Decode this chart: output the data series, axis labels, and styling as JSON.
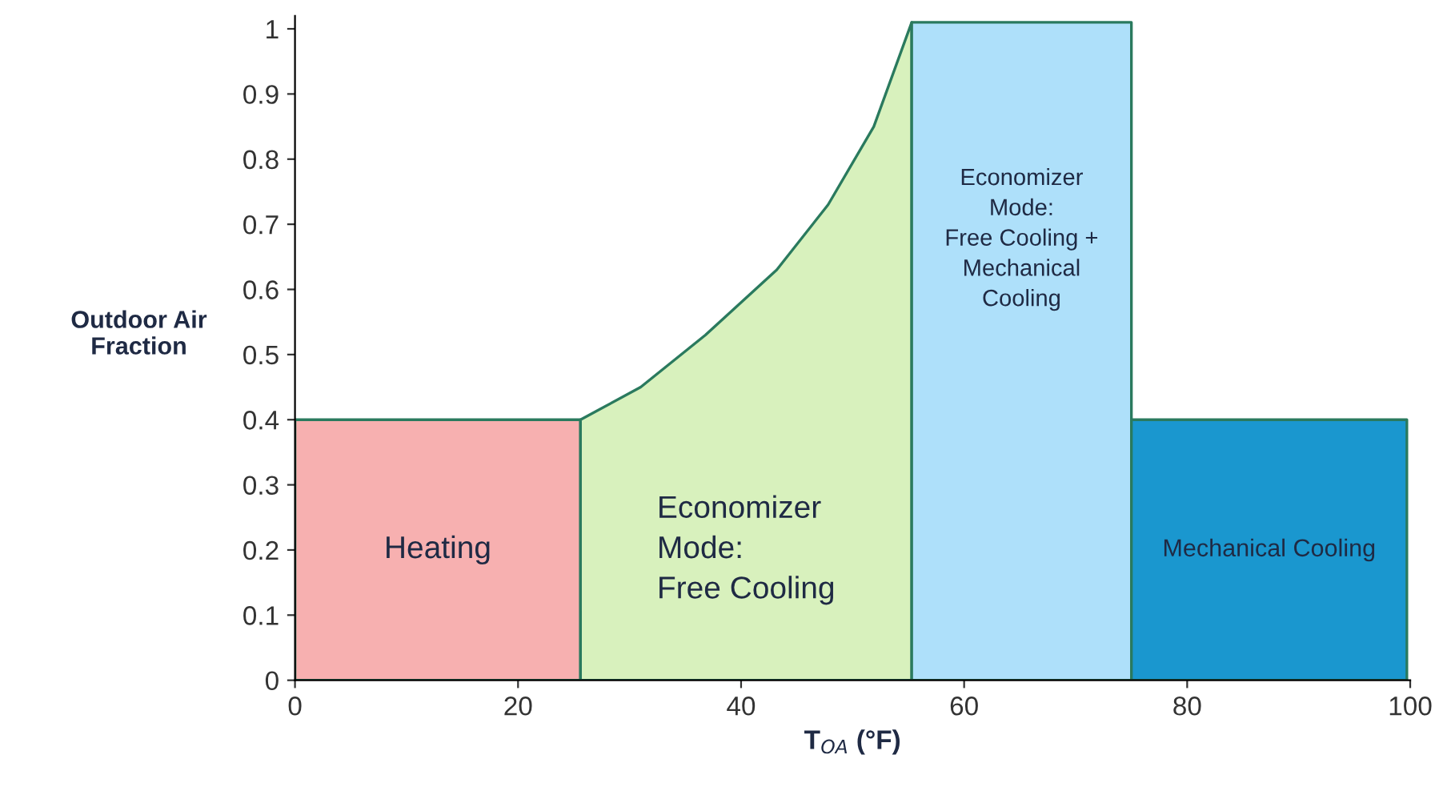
{
  "chart_data": {
    "type": "area",
    "xlabel": "T$_{OA}$ (°F)",
    "ylabel": "Outdoor Air\nFraction",
    "series": [
      {
        "name": "Heating",
        "color": "#f7b0b0",
        "x": [
          0,
          25.6
        ],
        "values": [
          0.4,
          0.4
        ]
      },
      {
        "name": "Economizer\nMode:\nFree Cooling",
        "color": "#d8f1bd",
        "x": [
          25.6,
          31,
          36.8,
          43.2,
          47.8,
          51.9,
          55.3
        ],
        "values": [
          0.4,
          0.45,
          0.53,
          0.63,
          0.73,
          0.85,
          1.01
        ]
      },
      {
        "name": "Economizer\nMode:\nFree Cooling +\nMechanical\nCooling",
        "color": "#aee0fa",
        "x": [
          55.3,
          75
        ],
        "values": [
          1.01,
          1.01
        ]
      },
      {
        "name": "Mechanical Cooling",
        "color": "#1a97cf",
        "x": [
          75,
          99.7
        ],
        "values": [
          0.4,
          0.4
        ]
      }
    ],
    "xlim": [
      0,
      100
    ],
    "xticks": [
      0,
      20,
      40,
      60,
      80,
      100
    ],
    "ylim": [
      0,
      1.02
    ],
    "yticks": [
      0,
      0.1,
      0.2,
      0.3,
      0.4,
      0.5,
      0.6,
      0.7,
      0.8,
      0.9,
      1
    ],
    "grid": false,
    "legend": false
  }
}
